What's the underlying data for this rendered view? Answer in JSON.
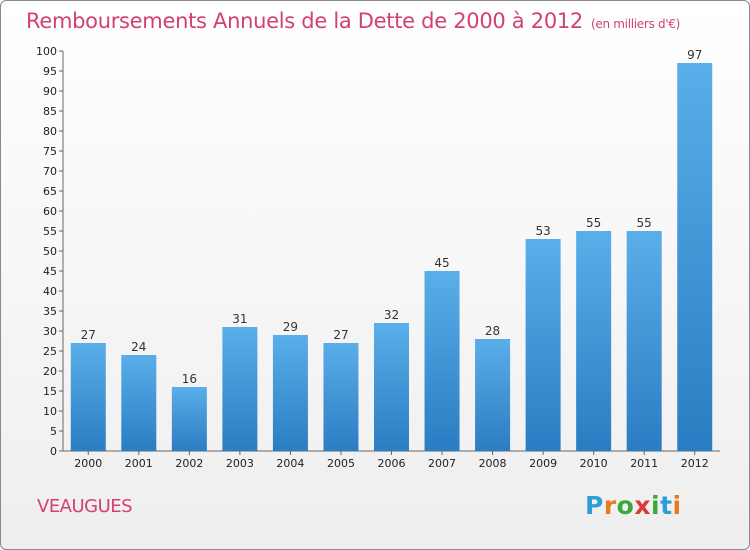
{
  "chart_data": {
    "type": "bar",
    "title": "Remboursements Annuels de la Dette de 2000 à 2012",
    "unit": "(en milliers d'€)",
    "categories": [
      "2000",
      "2001",
      "2002",
      "2003",
      "2004",
      "2005",
      "2006",
      "2007",
      "2008",
      "2009",
      "2010",
      "2011",
      "2012"
    ],
    "values": [
      27,
      24,
      16,
      31,
      29,
      27,
      32,
      45,
      28,
      53,
      55,
      55,
      97
    ],
    "ylim": [
      0,
      100
    ],
    "ytick_step": 5,
    "grid": false,
    "bar_color": "#3a8fd6"
  },
  "commune": "VEAUGUES",
  "logo": {
    "text": "Proxiti",
    "letter_colors": [
      "#2b9fd9",
      "#e87a1e",
      "#3aa83a",
      "#d93a3a",
      "#3aa83a",
      "#2b9fd9",
      "#e87a1e"
    ]
  }
}
